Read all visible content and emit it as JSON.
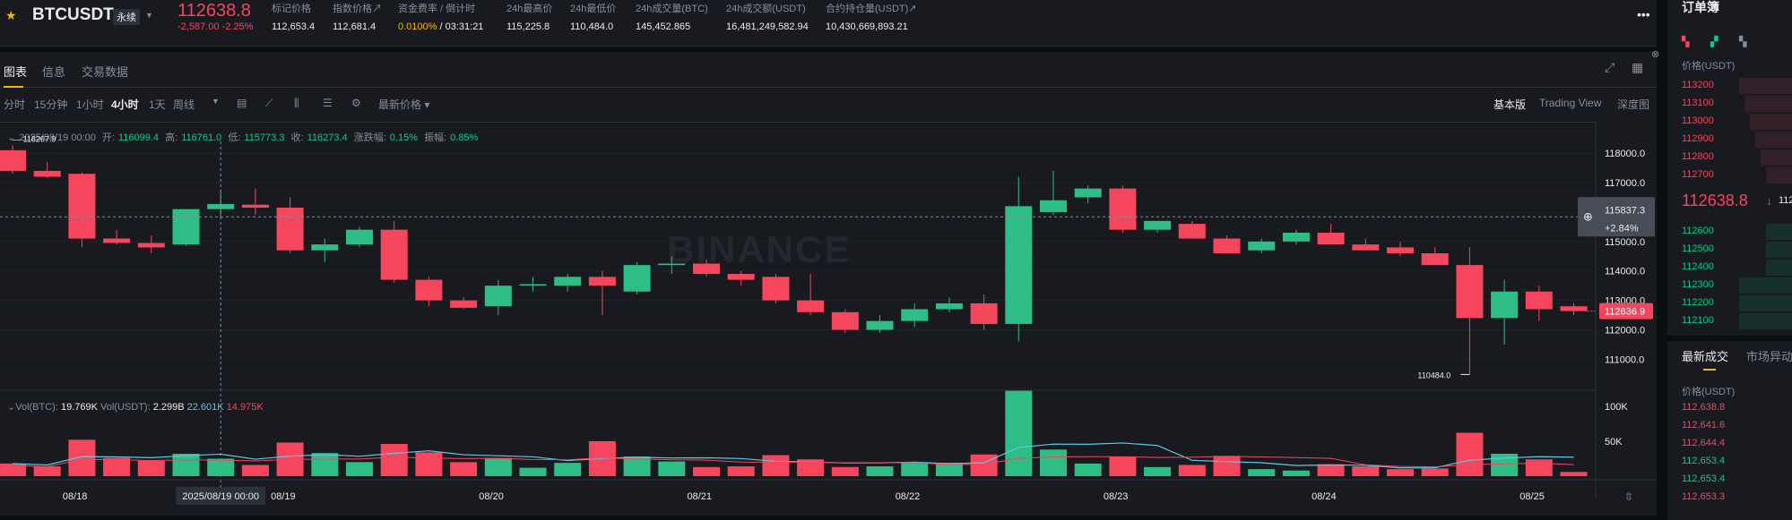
{
  "header": {
    "symbol": "BTCUSDT",
    "contract_tag": "永续",
    "last_price": "112638.8",
    "change": "-2,587.00 -2.25%",
    "stats": [
      {
        "label": "标记价格",
        "value": "112,653.4"
      },
      {
        "label": "指数价格↗",
        "value": "112,681.4"
      },
      {
        "label": "资金费率 / 倒计时",
        "value_a": "0.0100%",
        "value_b": " / 03:31:21"
      },
      {
        "label": "24h最高价",
        "value": "115,225.8"
      },
      {
        "label": "24h最低价",
        "value": "110,484.0"
      },
      {
        "label": "24h成交量(BTC)",
        "value": "145,452.865"
      },
      {
        "label": "24h成交额(USDT)",
        "value": "16,481,249,582.94"
      },
      {
        "label": "合约持仓量(USDT)↗",
        "value": "10,430,669,893.21"
      }
    ]
  },
  "tabs": [
    {
      "label": "图表"
    },
    {
      "label": "信息"
    },
    {
      "label": "交易数据"
    }
  ],
  "toolbar": {
    "intervals": [
      "分时",
      "15分钟",
      "1小时",
      "4小时",
      "1天",
      "周线"
    ],
    "active_interval": "4小时",
    "price_type": "最新价格",
    "views": [
      "基本版",
      "Trading View",
      "深度图"
    ]
  },
  "ohlc": {
    "date": "2025/08/19 00:00",
    "open_label": "开:",
    "open": "116099.4",
    "high_label": "高:",
    "high": "116761.0",
    "low_label": "低:",
    "low": "115773.3",
    "close_label": "收:",
    "close": "116273.4",
    "chg_label": "涨跌幅:",
    "chg": "0.15%",
    "amp_label": "振幅:",
    "amp": "0.85%"
  },
  "watermark": "BINANCE",
  "chart_data": {
    "type": "candlestick",
    "y_ticks": [
      "118000.0",
      "117000.0",
      "116000.0",
      "115000.0",
      "114000.0",
      "113000.0",
      "112000.0",
      "111000.0"
    ],
    "ylim": [
      110800,
      118400
    ],
    "x_labels": [
      "08/18",
      "08/19",
      "08/20",
      "08/21",
      "08/22",
      "08/23",
      "08/24",
      "08/25"
    ],
    "crosshair_time": "2025/08/19 00:00",
    "crosshair_price": "115837.3",
    "crosshair_pct": "+2.84%",
    "last_price_tag": "112636.9",
    "max_label": "118267.9",
    "min_label": "110484.0",
    "candles": [
      {
        "o": 118100,
        "h": 118268,
        "l": 117300,
        "c": 117400
      },
      {
        "o": 117400,
        "h": 117700,
        "l": 117150,
        "c": 117200
      },
      {
        "o": 117300,
        "h": 117350,
        "l": 114800,
        "c": 115100
      },
      {
        "o": 115100,
        "h": 115400,
        "l": 114900,
        "c": 114950
      },
      {
        "o": 114950,
        "h": 115200,
        "l": 114600,
        "c": 114800
      },
      {
        "o": 114900,
        "h": 116100,
        "l": 114850,
        "c": 116100
      },
      {
        "o": 116100,
        "h": 116761,
        "l": 115773,
        "c": 116273
      },
      {
        "o": 116250,
        "h": 116800,
        "l": 115900,
        "c": 116150
      },
      {
        "o": 116150,
        "h": 116500,
        "l": 114600,
        "c": 114700
      },
      {
        "o": 114700,
        "h": 115100,
        "l": 114300,
        "c": 114900
      },
      {
        "o": 114900,
        "h": 115500,
        "l": 114800,
        "c": 115400
      },
      {
        "o": 115400,
        "h": 115700,
        "l": 113600,
        "c": 113700
      },
      {
        "o": 113700,
        "h": 113800,
        "l": 112800,
        "c": 113000
      },
      {
        "o": 113000,
        "h": 113100,
        "l": 112700,
        "c": 112750
      },
      {
        "o": 112800,
        "h": 113700,
        "l": 112500,
        "c": 113500
      },
      {
        "o": 113500,
        "h": 113800,
        "l": 113300,
        "c": 113550
      },
      {
        "o": 113500,
        "h": 113900,
        "l": 113300,
        "c": 113800
      },
      {
        "o": 113800,
        "h": 114000,
        "l": 112500,
        "c": 113500
      },
      {
        "o": 113300,
        "h": 114300,
        "l": 113200,
        "c": 114200
      },
      {
        "o": 114200,
        "h": 114500,
        "l": 113900,
        "c": 114250
      },
      {
        "o": 114250,
        "h": 114400,
        "l": 113800,
        "c": 113900
      },
      {
        "o": 113900,
        "h": 114000,
        "l": 113500,
        "c": 113700
      },
      {
        "o": 113800,
        "h": 113900,
        "l": 112900,
        "c": 113000
      },
      {
        "o": 113000,
        "h": 113900,
        "l": 112500,
        "c": 112600
      },
      {
        "o": 112600,
        "h": 112700,
        "l": 111900,
        "c": 112000
      },
      {
        "o": 112000,
        "h": 112500,
        "l": 111900,
        "c": 112300
      },
      {
        "o": 112300,
        "h": 112900,
        "l": 112100,
        "c": 112700
      },
      {
        "o": 112700,
        "h": 113100,
        "l": 112600,
        "c": 112900
      },
      {
        "o": 112900,
        "h": 113200,
        "l": 112000,
        "c": 112200
      },
      {
        "o": 112200,
        "h": 117200,
        "l": 111600,
        "c": 116200
      },
      {
        "o": 116000,
        "h": 117400,
        "l": 115900,
        "c": 116400
      },
      {
        "o": 116500,
        "h": 116900,
        "l": 116300,
        "c": 116800
      },
      {
        "o": 116800,
        "h": 116900,
        "l": 115300,
        "c": 115400
      },
      {
        "o": 115400,
        "h": 115700,
        "l": 115300,
        "c": 115700
      },
      {
        "o": 115600,
        "h": 115700,
        "l": 115100,
        "c": 115100
      },
      {
        "o": 115100,
        "h": 115200,
        "l": 114600,
        "c": 114600
      },
      {
        "o": 114700,
        "h": 115100,
        "l": 114600,
        "c": 115000
      },
      {
        "o": 115000,
        "h": 115400,
        "l": 114900,
        "c": 115300
      },
      {
        "o": 115300,
        "h": 115600,
        "l": 114900,
        "c": 114900
      },
      {
        "o": 114900,
        "h": 115100,
        "l": 114700,
        "c": 114700
      },
      {
        "o": 114800,
        "h": 115000,
        "l": 114500,
        "c": 114600
      },
      {
        "o": 114600,
        "h": 114800,
        "l": 114200,
        "c": 114200
      },
      {
        "o": 114200,
        "h": 114800,
        "l": 110484,
        "c": 112400
      },
      {
        "o": 112400,
        "h": 113700,
        "l": 111500,
        "c": 113300
      },
      {
        "o": 113300,
        "h": 113500,
        "l": 112300,
        "c": 112700
      },
      {
        "o": 112800,
        "h": 112900,
        "l": 112500,
        "c": 112637
      }
    ],
    "volume": {
      "header": "Vol(BTC):",
      "value_btc": "19.769K",
      "label_usdt": "Vol(USDT):",
      "value_usdt": "2.299B",
      "ma1": "22.601K",
      "ma2": "14.975K",
      "y_ticks": [
        "100K",
        "50K"
      ],
      "ylim": [
        0,
        110000
      ],
      "values": [
        18000,
        14000,
        52000,
        26000,
        22000,
        32000,
        25000,
        16000,
        48000,
        33000,
        20000,
        46000,
        34000,
        20000,
        26000,
        12000,
        19000,
        50000,
        28000,
        21000,
        13000,
        14000,
        30000,
        24000,
        13000,
        14000,
        19000,
        19000,
        31000,
        122000,
        38000,
        18000,
        28000,
        13000,
        16000,
        29000,
        10000,
        8000,
        17000,
        14000,
        10000,
        11000,
        62000,
        32000,
        24000,
        6000
      ]
    }
  },
  "orderbook": {
    "title": "订单簿",
    "price_header": "价格(USDT)",
    "asks": [
      "113200",
      "113100",
      "113000",
      "112900",
      "112800",
      "112700"
    ],
    "mid_price": "112638.8",
    "mid_arrow": "↓",
    "mid_mark": "112",
    "bids": [
      "112600",
      "112500",
      "112400",
      "112300",
      "112200",
      "112100"
    ]
  },
  "trades": {
    "tabs": [
      "最新成交",
      "市场异动"
    ],
    "price_header": "价格(USDT)",
    "rows": [
      {
        "price": "112,638.8",
        "side": "sell"
      },
      {
        "price": "112,641.6",
        "side": "sell"
      },
      {
        "price": "112,644.4",
        "side": "sell"
      },
      {
        "price": "112,653.4",
        "side": "buy"
      },
      {
        "price": "112,653.4",
        "side": "buy"
      },
      {
        "price": "112,653.3",
        "side": "sell"
      }
    ]
  },
  "colors": {
    "up": "#2ebd85",
    "down": "#f6465d",
    "accent": "#f0b90b"
  }
}
